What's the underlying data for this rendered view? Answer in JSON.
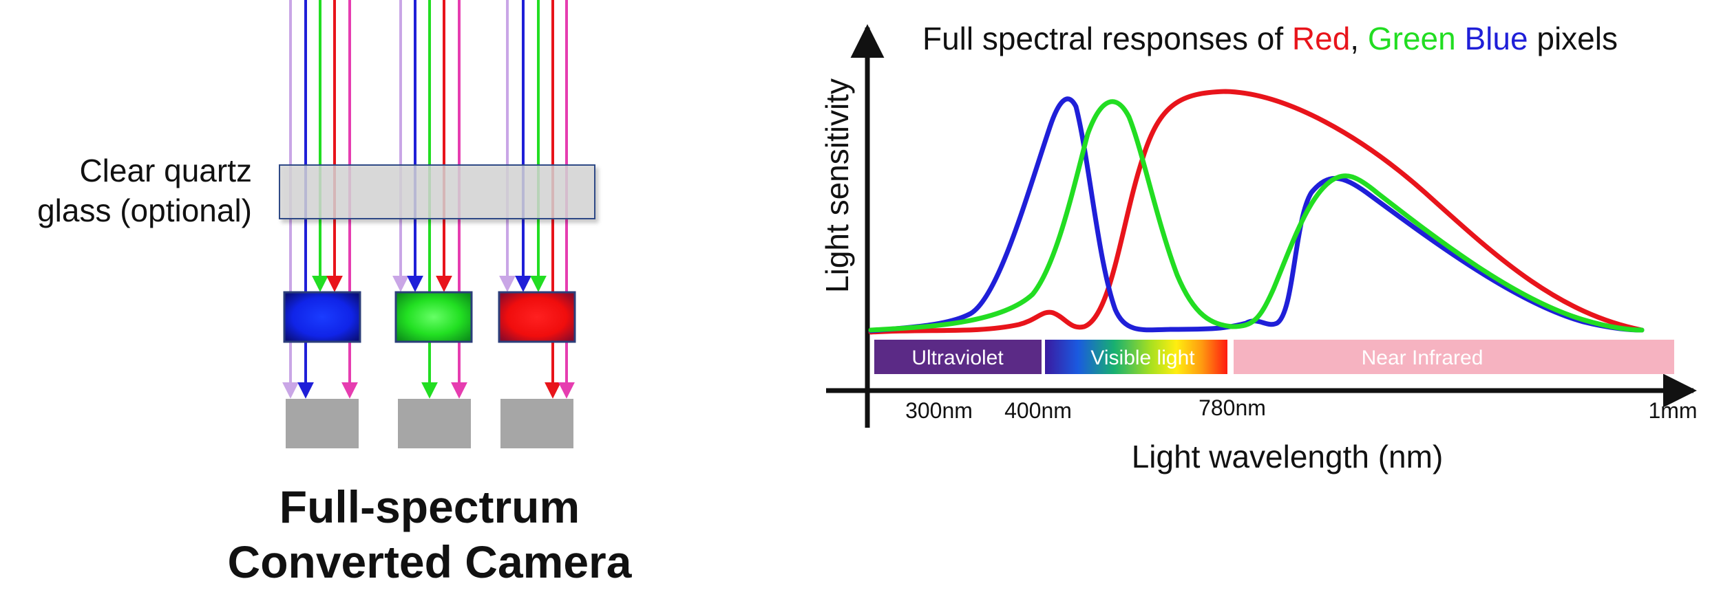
{
  "colors": {
    "red": "#e8141b",
    "green": "#22dd22",
    "blue": "#1f1fd8",
    "lavender": "#c9a6e6",
    "magenta": "#e63db0",
    "glass_fill": "#d6d6d6",
    "glass_border": "#2d4a86",
    "pixel_border": "#2b3e7a",
    "sensor_gray": "#a6a6a6",
    "uv_band": "#5b2a86",
    "nir_band": "#f6b3c1",
    "axis": "#111111"
  },
  "left_diagram": {
    "glass_label_line1": "Clear quartz",
    "glass_label_line2": "glass (optional)",
    "title_line1": "Full-spectrum",
    "title_line2": "Converted Camera",
    "pixels": [
      {
        "name": "blue-pixel",
        "color": "blue",
        "passes": [
          "lavender",
          "blue",
          "magenta"
        ]
      },
      {
        "name": "green-pixel",
        "color": "green",
        "passes": [
          "green"
        ]
      },
      {
        "name": "red-pixel",
        "color": "red",
        "passes": [
          "red",
          "magenta"
        ]
      }
    ],
    "incoming_rays": [
      "lavender",
      "blue",
      "green",
      "red",
      "magenta"
    ]
  },
  "chart_data": {
    "type": "line",
    "title": {
      "prefix": "Full spectral responses of ",
      "red_word": "Red",
      "comma": ", ",
      "green_word": "Green",
      "space": " ",
      "blue_word": "Blue",
      "suffix": " pixels"
    },
    "xlabel": "Light wavelength (nm)",
    "ylabel": "Light sensitivity",
    "x_ticks": [
      "300nm",
      "400nm",
      "780nm",
      "1mm"
    ],
    "bands": [
      {
        "name": "ultraviolet-band",
        "label": "Ultraviolet"
      },
      {
        "name": "visible-band",
        "label": "Visible light"
      },
      {
        "name": "near-infrared-band",
        "label": "Near Infrared"
      }
    ],
    "series": [
      {
        "name": "Red",
        "color": "red"
      },
      {
        "name": "Blue",
        "color": "blue"
      },
      {
        "name": "Green",
        "color": "green"
      }
    ]
  }
}
